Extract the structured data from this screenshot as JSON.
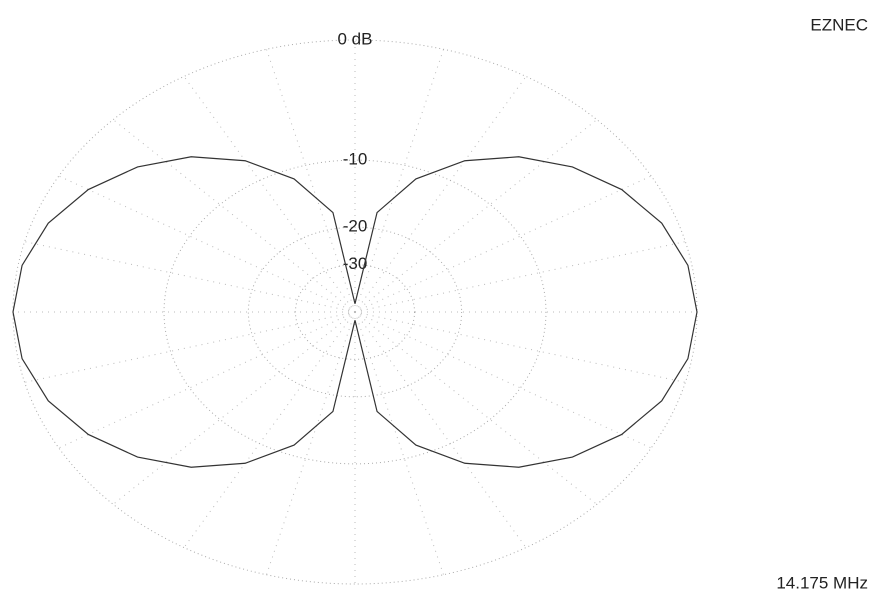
{
  "chart_data": {
    "type": "polar",
    "brand": "EZNEC",
    "frequency": "14.175 MHz",
    "rings": [
      {
        "value": 0,
        "label": "0 dB"
      },
      -10,
      -20,
      -30
    ],
    "grid": true,
    "color": "#333333",
    "angles": [
      0,
      10,
      20,
      30,
      40,
      50,
      60,
      70,
      80,
      90,
      100,
      110,
      120,
      130,
      140,
      150,
      160,
      170,
      180,
      190,
      200,
      210,
      220,
      230,
      240,
      250,
      260,
      270,
      280,
      290,
      300,
      310,
      320,
      330,
      340,
      350
    ],
    "values": [
      -60,
      -17,
      -11.2,
      -7.6,
      -5.05,
      -3.2,
      -1.8,
      -0.8,
      -0.2,
      0,
      -0.2,
      -0.8,
      -1.8,
      -3.2,
      -5.05,
      -7.6,
      -11.2,
      -17,
      -60,
      -17,
      -11.2,
      -7.6,
      -5.05,
      -3.2,
      -1.8,
      -0.8,
      -0.2,
      0,
      -0.2,
      -0.8,
      -1.8,
      -3.2,
      -5.05,
      -7.6,
      -11.2,
      -17
    ]
  }
}
